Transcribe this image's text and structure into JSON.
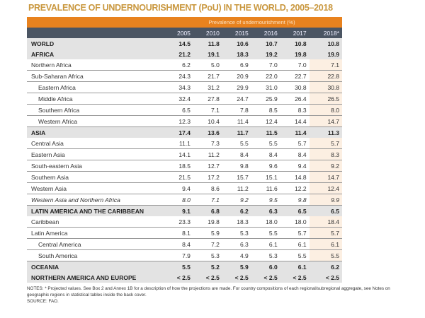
{
  "title": "PREVALENCE OF UNDERNOURISHMENT (PoU) IN THE WORLD, 2005–2018",
  "group_header": "Prevalence of undernourishment (%)",
  "years": [
    "2005",
    "2010",
    "2015",
    "2016",
    "2017",
    "2018*"
  ],
  "rows": [
    {
      "label": "WORLD",
      "type": "agg",
      "values": [
        "14.5",
        "11.8",
        "10.6",
        "10.7",
        "10.8",
        "10.8"
      ]
    },
    {
      "label": "AFRICA",
      "type": "agg",
      "values": [
        "21.2",
        "19.1",
        "18.3",
        "19.2",
        "19.8",
        "19.9"
      ]
    },
    {
      "label": "Northern Africa",
      "type": "row",
      "values": [
        "6.2",
        "5.0",
        "6.9",
        "7.0",
        "7.0",
        "7.1"
      ]
    },
    {
      "label": "Sub-Saharan Africa",
      "type": "row",
      "values": [
        "24.3",
        "21.7",
        "20.9",
        "22.0",
        "22.7",
        "22.8"
      ]
    },
    {
      "label": "Eastern Africa",
      "type": "sub",
      "values": [
        "34.3",
        "31.2",
        "29.9",
        "31.0",
        "30.8",
        "30.8"
      ]
    },
    {
      "label": "Middle Africa",
      "type": "sub",
      "values": [
        "32.4",
        "27.8",
        "24.7",
        "25.9",
        "26.4",
        "26.5"
      ]
    },
    {
      "label": "Southern Africa",
      "type": "sub",
      "values": [
        "6.5",
        "7.1",
        "7.8",
        "8.5",
        "8.3",
        "8.0"
      ]
    },
    {
      "label": "Western Africa",
      "type": "sub",
      "values": [
        "12.3",
        "10.4",
        "11.4",
        "12.4",
        "14.4",
        "14.7"
      ]
    },
    {
      "label": "ASIA",
      "type": "agg",
      "values": [
        "17.4",
        "13.6",
        "11.7",
        "11.5",
        "11.4",
        "11.3"
      ]
    },
    {
      "label": "Central Asia",
      "type": "row",
      "values": [
        "11.1",
        "7.3",
        "5.5",
        "5.5",
        "5.7",
        "5.7"
      ]
    },
    {
      "label": "Eastern Asia",
      "type": "row",
      "values": [
        "14.1",
        "11.2",
        "8.4",
        "8.4",
        "8.4",
        "8.3"
      ]
    },
    {
      "label": "South-eastern Asia",
      "type": "row",
      "values": [
        "18.5",
        "12.7",
        "9.8",
        "9.6",
        "9.4",
        "9.2"
      ]
    },
    {
      "label": "Southern Asia",
      "type": "row",
      "values": [
        "21.5",
        "17.2",
        "15.7",
        "15.1",
        "14.8",
        "14.7"
      ]
    },
    {
      "label": "Western Asia",
      "type": "row",
      "values": [
        "9.4",
        "8.6",
        "11.2",
        "11.6",
        "12.2",
        "12.4"
      ]
    },
    {
      "label": "Western Asia and Northern Africa",
      "type": "italic",
      "values": [
        "8.0",
        "7.1",
        "9.2",
        "9.5",
        "9.8",
        "9.9"
      ]
    },
    {
      "label": "LATIN AMERICA AND THE CARIBBEAN",
      "type": "agg",
      "values": [
        "9.1",
        "6.8",
        "6.2",
        "6.3",
        "6.5",
        "6.5"
      ]
    },
    {
      "label": "Caribbean",
      "type": "row",
      "values": [
        "23.3",
        "19.8",
        "18.3",
        "18.0",
        "18.0",
        "18.4"
      ]
    },
    {
      "label": "Latin America",
      "type": "row",
      "values": [
        "8.1",
        "5.9",
        "5.3",
        "5.5",
        "5.7",
        "5.7"
      ]
    },
    {
      "label": "Central America",
      "type": "sub",
      "values": [
        "8.4",
        "7.2",
        "6.3",
        "6.1",
        "6.1",
        "6.1"
      ]
    },
    {
      "label": "South America",
      "type": "sub",
      "values": [
        "7.9",
        "5.3",
        "4.9",
        "5.3",
        "5.5",
        "5.5"
      ]
    },
    {
      "label": "OCEANIA",
      "type": "agg",
      "values": [
        "5.5",
        "5.2",
        "5.9",
        "6.0",
        "6.1",
        "6.2"
      ]
    },
    {
      "label": "NORTHERN AMERICA AND EUROPE",
      "type": "agg",
      "values": [
        "< 2.5",
        "< 2.5",
        "< 2.5",
        "< 2.5",
        "< 2.5",
        "< 2.5"
      ]
    }
  ],
  "notes": "NOTES: * Projected values. See Box 2 and Annex 1B for a description of how the projections are made. For country compositions of each regional/subregional aggregate, see Notes on geographic regions in statistical tables inside the back cover.",
  "source": "SOURCE: FAO.",
  "colors": {
    "title": "#c9973e",
    "orange_header": "#e8821e",
    "year_header": "#4b5563",
    "aggregate_row": "#e3e3e3",
    "projected_column": "#fcefe2"
  }
}
